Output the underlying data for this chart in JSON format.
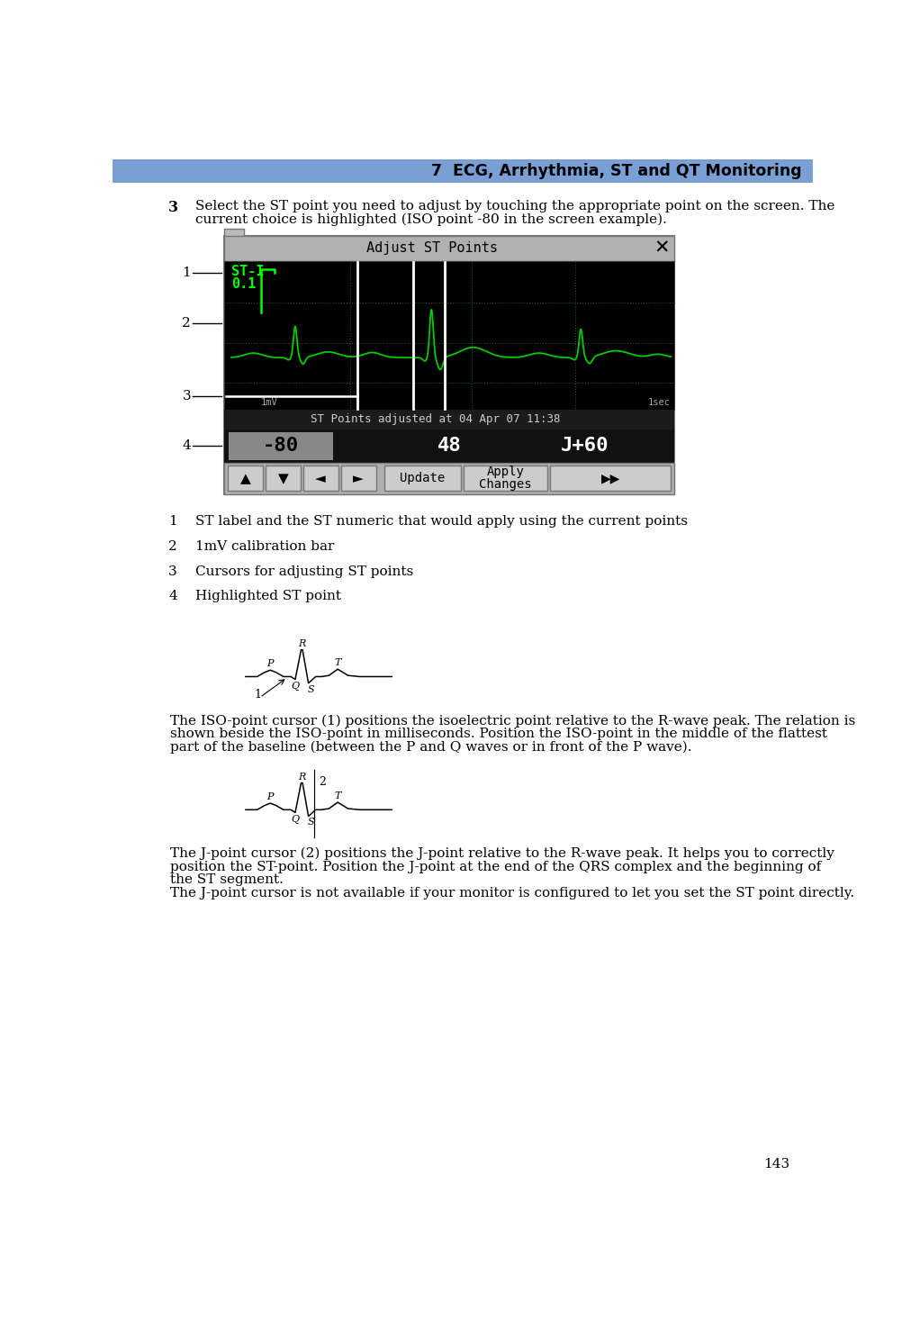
{
  "page_header_bg": "#7a9fd4",
  "page_header_text": "7  ECG, Arrhythmia, ST and QT Monitoring",
  "page_number": "143",
  "body_bg": "#ffffff",
  "step3_number": "3",
  "step3_text_line1": "Select the ST point you need to adjust by touching the appropriate point on the screen. The",
  "step3_text_line2": "current choice is highlighted (ISO point -80 in the screen example).",
  "screen_title": "Adjust ST Points",
  "screen_st_label": "ST-I",
  "screen_st_value": "0.1",
  "screen_status_text": "ST Points adjusted at 04 Apr 07 11:38",
  "screen_val1": "-80",
  "screen_val2": "48",
  "screen_val3": "J+60",
  "screen_label_mv": "1mV",
  "screen_label_sec": "1sec",
  "note1_num": "1",
  "note1_text": "ST label and the ST numeric that would apply using the current points",
  "note2_num": "2",
  "note2_text": "1mV calibration bar",
  "note3_num": "3",
  "note3_text": "Cursors for adjusting ST points",
  "note4_num": "4",
  "note4_text": "Highlighted ST point",
  "para1_lines": [
    "The ISO-point cursor (1) positions the isoelectric point relative to the R-wave peak. The relation is",
    "shown beside the ISO-point in milliseconds. Position the ISO-point in the middle of the flattest",
    "part of the baseline (between the P and Q waves or in front of the P wave)."
  ],
  "para2_lines": [
    "The J-point cursor (2) positions the J-point relative to the R-wave peak. It helps you to correctly",
    "position the ST-point. Position the J-point at the end of the QRS complex and the beginning of",
    "the ST segment.",
    "The J-point cursor is not available if your monitor is configured to let you set the ST point directly."
  ]
}
